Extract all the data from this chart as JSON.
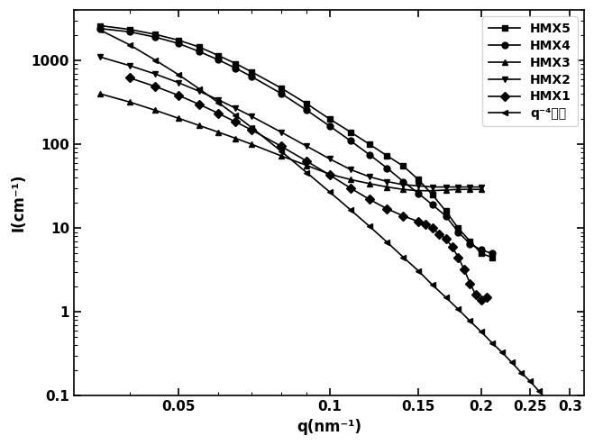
{
  "title": "",
  "xlabel": "q(nm⁻¹)",
  "ylabel": "I(cm⁻¹)",
  "xlim": [
    0.031,
    0.32
  ],
  "ylim": [
    0.1,
    4000
  ],
  "legend_labels": [
    "HMX5",
    "HMX4",
    "HMX3",
    "HMX2",
    "HMX1",
    "q⁻⁴曲线"
  ],
  "line_color": "black",
  "background_color": "white",
  "HMX5_q": [
    0.035,
    0.04,
    0.045,
    0.05,
    0.055,
    0.06,
    0.065,
    0.07,
    0.08,
    0.09,
    0.1,
    0.11,
    0.12,
    0.13,
    0.14,
    0.15,
    0.16,
    0.17,
    0.18,
    0.19,
    0.2,
    0.21
  ],
  "HMX5_I": [
    2600,
    2350,
    2050,
    1750,
    1450,
    1150,
    920,
    730,
    470,
    305,
    200,
    140,
    100,
    73,
    55,
    38,
    25,
    16,
    10,
    7,
    5,
    4.5
  ],
  "HMX4_q": [
    0.035,
    0.04,
    0.045,
    0.05,
    0.055,
    0.06,
    0.065,
    0.07,
    0.08,
    0.09,
    0.1,
    0.11,
    0.12,
    0.13,
    0.14,
    0.15,
    0.16,
    0.17,
    0.18,
    0.19,
    0.2,
    0.21
  ],
  "HMX4_I": [
    2400,
    2200,
    1900,
    1600,
    1280,
    1020,
    810,
    640,
    405,
    255,
    165,
    110,
    75,
    52,
    36,
    26,
    19,
    14,
    9,
    6.5,
    5.5,
    5.0
  ],
  "HMX3_q": [
    0.035,
    0.04,
    0.045,
    0.05,
    0.055,
    0.06,
    0.065,
    0.07,
    0.08,
    0.09,
    0.1,
    0.11,
    0.12,
    0.13,
    0.14,
    0.15,
    0.16,
    0.17,
    0.18,
    0.19,
    0.2
  ],
  "HMX3_I": [
    400,
    320,
    255,
    205,
    168,
    140,
    118,
    100,
    73,
    56,
    44,
    38,
    34,
    31,
    29,
    28,
    28,
    28.5,
    29,
    29,
    29
  ],
  "HMX2_q": [
    0.035,
    0.04,
    0.045,
    0.05,
    0.055,
    0.06,
    0.065,
    0.07,
    0.08,
    0.09,
    0.1,
    0.11,
    0.12,
    0.13,
    0.14,
    0.15,
    0.16,
    0.17,
    0.18,
    0.19,
    0.2
  ],
  "HMX2_I": [
    1100,
    870,
    690,
    545,
    430,
    340,
    270,
    215,
    140,
    95,
    67,
    50,
    41,
    36,
    33,
    32,
    31,
    31,
    31,
    31,
    31
  ],
  "HMX1_q": [
    0.04,
    0.045,
    0.05,
    0.055,
    0.06,
    0.065,
    0.07,
    0.08,
    0.09,
    0.1,
    0.11,
    0.12,
    0.13,
    0.14,
    0.15,
    0.155,
    0.16,
    0.165,
    0.17,
    0.175,
    0.18,
    0.185,
    0.19,
    0.195,
    0.2,
    0.205
  ],
  "HMX1_I": [
    620,
    490,
    385,
    300,
    235,
    185,
    148,
    95,
    63,
    43,
    30,
    22,
    17,
    14,
    12,
    11,
    10,
    8.5,
    7.5,
    6.0,
    4.5,
    3.2,
    2.2,
    1.6,
    1.4,
    1.5
  ],
  "q4_q": [
    0.035,
    0.04,
    0.045,
    0.05,
    0.055,
    0.06,
    0.065,
    0.07,
    0.08,
    0.09,
    0.1,
    0.11,
    0.12,
    0.13,
    0.14,
    0.15,
    0.16,
    0.17,
    0.18,
    0.19,
    0.2,
    0.21,
    0.22,
    0.23,
    0.24,
    0.25,
    0.26,
    0.27,
    0.28,
    0.29,
    0.3
  ],
  "q4_I": [
    2300,
    1540,
    1010,
    680,
    460,
    316,
    222,
    158,
    83,
    46,
    27,
    16.5,
    10.5,
    6.8,
    4.5,
    3.1,
    2.1,
    1.5,
    1.08,
    0.78,
    0.58,
    0.43,
    0.33,
    0.25,
    0.19,
    0.15,
    0.115,
    0.09,
    0.07,
    0.056,
    0.044
  ]
}
